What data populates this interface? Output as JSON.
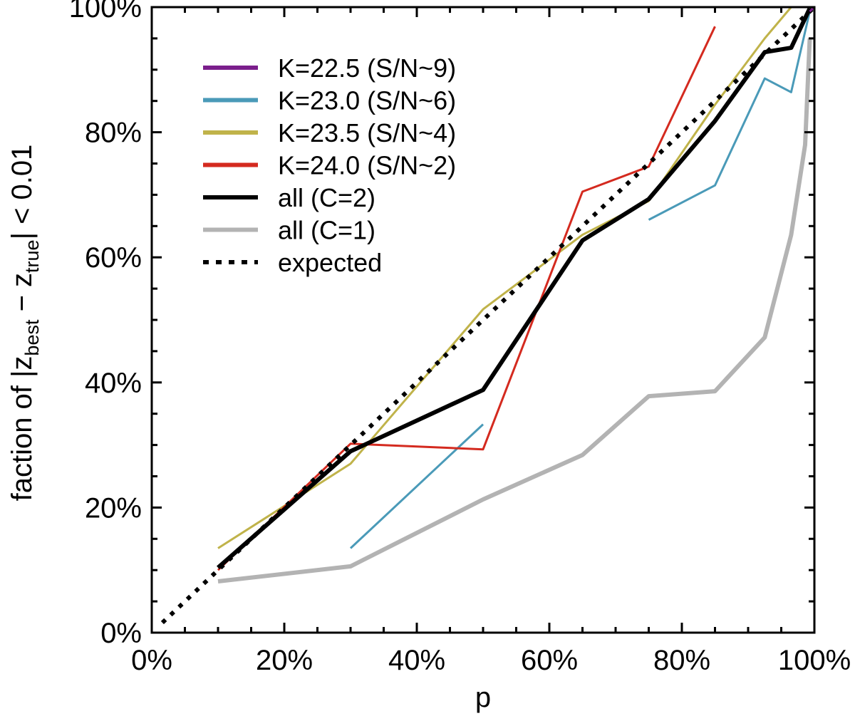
{
  "chart_data": {
    "type": "line",
    "title": "",
    "xlabel": "p",
    "ylabel": {
      "prefix": "faction of |z",
      "sub1": "best",
      "middle": " − z",
      "sub2": "true",
      "suffix": "| < 0.01"
    },
    "xlim": [
      0,
      100
    ],
    "ylim": [
      0,
      100
    ],
    "x_ticks": [
      {
        "value": 0,
        "label": "0%"
      },
      {
        "value": 20,
        "label": "20%"
      },
      {
        "value": 40,
        "label": "40%"
      },
      {
        "value": 60,
        "label": "60%"
      },
      {
        "value": 80,
        "label": "80%"
      },
      {
        "value": 100,
        "label": "100%"
      }
    ],
    "y_ticks": [
      {
        "value": 0,
        "label": "0%"
      },
      {
        "value": 20,
        "label": "20%"
      },
      {
        "value": 40,
        "label": "40%"
      },
      {
        "value": 60,
        "label": "60%"
      },
      {
        "value": 80,
        "label": "80%"
      },
      {
        "value": 100,
        "label": "100%"
      }
    ],
    "legend_position": "top-left",
    "series": [
      {
        "name": "K=22.5 (S/N~9)",
        "color": "#7b1f8c",
        "style": "solid",
        "weight": "thin",
        "x": [
          99.3,
          100
        ],
        "y": [
          99.3,
          100
        ]
      },
      {
        "name": "K=23.0 (S/N~6)",
        "color": "#4a9ab8",
        "style": "solid",
        "weight": "thin",
        "x": [
          30,
          50,
          null,
          75,
          85,
          92.5,
          96.5,
          99.3
        ],
        "y": [
          13.5,
          33.3,
          null,
          66,
          71.5,
          88.6,
          86.4,
          99.3
        ]
      },
      {
        "name": "K=23.5 (S/N~4)",
        "color": "#c0b34a",
        "style": "solid",
        "weight": "thin",
        "x": [
          10,
          30,
          50,
          65,
          75,
          85,
          92.5,
          96.5,
          99.3
        ],
        "y": [
          13.5,
          27,
          51.7,
          63.6,
          69,
          84.4,
          95,
          100,
          100
        ]
      },
      {
        "name": "K=24.0 (S/N~2)",
        "color": "#d42a1f",
        "style": "solid",
        "weight": "thin",
        "x": [
          10,
          30,
          50,
          65,
          75,
          85
        ],
        "y": [
          10,
          30.2,
          29.3,
          70.5,
          74.5,
          96.9
        ]
      },
      {
        "name": "all (C=2)",
        "color": "#000000",
        "style": "solid",
        "weight": "thick",
        "x": [
          10,
          30,
          50,
          65,
          75,
          85,
          92.5,
          96.5,
          99.3
        ],
        "y": [
          10.4,
          29,
          38.8,
          62.7,
          69.3,
          81.8,
          92.8,
          93.5,
          99.8
        ]
      },
      {
        "name": "all (C=1)",
        "color": "#b3b3b3",
        "style": "solid",
        "weight": "thick",
        "x": [
          10,
          30,
          50,
          65,
          75,
          85,
          92.5,
          96.5,
          98.6,
          99.3
        ],
        "y": [
          8.2,
          10.6,
          21.3,
          28.4,
          37.8,
          38.6,
          47.2,
          63.6,
          78,
          95
        ]
      },
      {
        "name": "expected",
        "color": "#000000",
        "style": "dotted",
        "weight": "thick",
        "x": [
          1.6,
          100
        ],
        "y": [
          1.6,
          100
        ]
      }
    ]
  }
}
